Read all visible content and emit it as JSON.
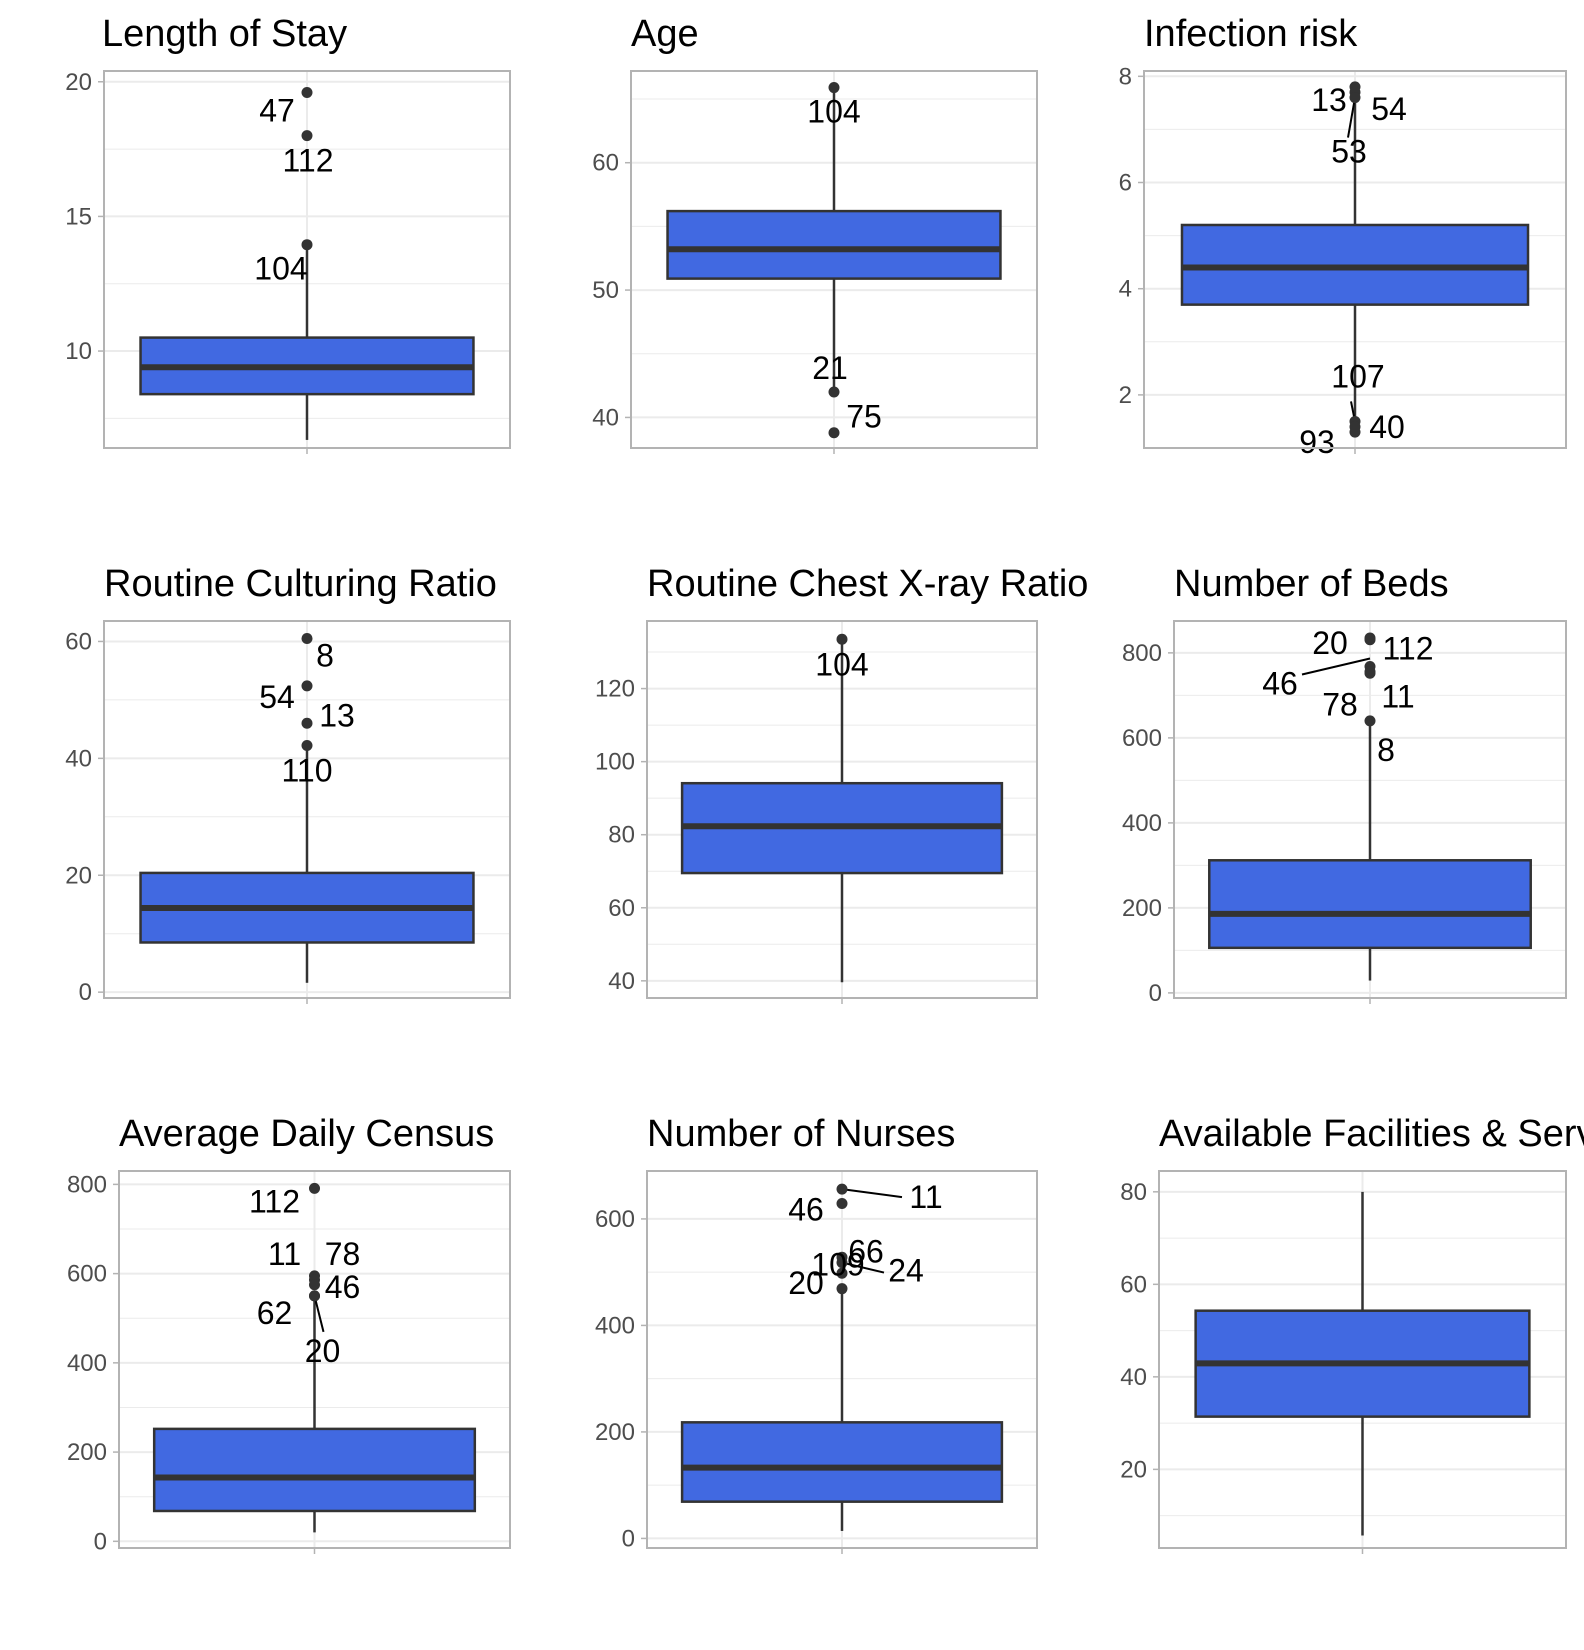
{
  "colors": {
    "box_fill": "#4169E1",
    "box_line": "#333333",
    "grid": "#ebebeb",
    "panel_border": "#b3b3b3",
    "tick_text": "#4d4d4d"
  },
  "chart_data": [
    {
      "type": "boxplot",
      "title": "Length of Stay",
      "ylim": [
        6.4,
        20.4
      ],
      "yticks": [
        10,
        15,
        20
      ],
      "ytick_labels": [
        "10",
        "15",
        "20"
      ],
      "box": {
        "q1": 8.4,
        "median": 9.4,
        "q3": 10.5,
        "whisker_low": 6.7,
        "whisker_high": 14.0
      },
      "outliers": [
        {
          "y": 19.6,
          "label": "47"
        },
        {
          "y": 18.0,
          "label": "112"
        },
        {
          "y": 13.95,
          "label": "104"
        }
      ]
    },
    {
      "type": "boxplot",
      "title": "Age",
      "ylim": [
        37.6,
        67.2
      ],
      "yticks": [
        40,
        50,
        60
      ],
      "ytick_labels": [
        "40",
        "50",
        "60"
      ],
      "box": {
        "q1": 50.9,
        "median": 53.2,
        "q3": 56.2,
        "whisker_low": 42.0,
        "whisker_high": 65.9
      },
      "outliers": [
        {
          "y": 65.9,
          "label": "104"
        },
        {
          "y": 42.0,
          "label": "21"
        },
        {
          "y": 38.8,
          "label": "75"
        }
      ]
    },
    {
      "type": "boxplot",
      "title": "Infection risk",
      "ylim": [
        1.0,
        8.1
      ],
      "yticks": [
        2,
        4,
        6,
        8
      ],
      "ytick_labels": [
        "2",
        "4",
        "6",
        "8"
      ],
      "box": {
        "q1": 3.7,
        "median": 4.4,
        "q3": 5.2,
        "whisker_low": 1.4,
        "whisker_high": 7.8
      },
      "outliers": [
        {
          "y": 7.8,
          "label": "13"
        },
        {
          "y": 7.7,
          "label": "54"
        },
        {
          "y": 7.6,
          "label": "53"
        },
        {
          "y": 1.5,
          "label": "107"
        },
        {
          "y": 1.3,
          "label": "93"
        },
        {
          "y": 1.4,
          "label": "40"
        }
      ]
    },
    {
      "type": "boxplot",
      "title": "Routine Culturing Ratio",
      "ylim": [
        -1.0,
        63.5
      ],
      "yticks": [
        0,
        20,
        40,
        60
      ],
      "ytick_labels": [
        "0",
        "20",
        "40",
        "60"
      ],
      "box": {
        "q1": 8.5,
        "median": 14.4,
        "q3": 20.4,
        "whisker_low": 1.6,
        "whisker_high": 42.2
      },
      "outliers": [
        {
          "y": 60.5,
          "label": "8"
        },
        {
          "y": 52.4,
          "label": "54"
        },
        {
          "y": 46.0,
          "label": "13"
        },
        {
          "y": 42.2,
          "label": "110"
        }
      ]
    },
    {
      "type": "boxplot",
      "title": "Routine Chest X-ray Ratio",
      "ylim": [
        35.3,
        138.5
      ],
      "yticks": [
        40,
        60,
        80,
        100,
        120
      ],
      "ytick_labels": [
        "40",
        "60",
        "80",
        "100",
        "120"
      ],
      "box": {
        "q1": 69.5,
        "median": 82.3,
        "q3": 94.1,
        "whisker_low": 39.6,
        "whisker_high": 133.5
      },
      "outliers": [
        {
          "y": 133.5,
          "label": "104"
        }
      ]
    },
    {
      "type": "boxplot",
      "title": "Number of Beds",
      "ylim": [
        -12,
        875
      ],
      "yticks": [
        0,
        200,
        400,
        600,
        800
      ],
      "ytick_labels": [
        "0",
        "200",
        "400",
        "600",
        "800"
      ],
      "box": {
        "q1": 106,
        "median": 186,
        "q3": 312,
        "whisker_low": 29,
        "whisker_high": 640
      },
      "outliers": [
        {
          "y": 835,
          "label": "20"
        },
        {
          "y": 831,
          "label": "112"
        },
        {
          "y": 768,
          "label": "46"
        },
        {
          "y": 756,
          "label": "78"
        },
        {
          "y": 752,
          "label": "11"
        },
        {
          "y": 640,
          "label": "8"
        }
      ]
    },
    {
      "type": "boxplot",
      "title": "Average Daily Census",
      "ylim": [
        -15,
        830
      ],
      "yticks": [
        0,
        200,
        400,
        600,
        800
      ],
      "ytick_labels": [
        "0",
        "200",
        "400",
        "600",
        "800"
      ],
      "box": {
        "q1": 68,
        "median": 143,
        "q3": 252,
        "whisker_low": 20,
        "whisker_high": 550
      },
      "outliers": [
        {
          "y": 791,
          "label": "112"
        },
        {
          "y": 595,
          "label": "11"
        },
        {
          "y": 586,
          "label": "78"
        },
        {
          "y": 575,
          "label": "62"
        },
        {
          "y": 550,
          "label": "46"
        },
        {
          "y": 550,
          "label": "20"
        }
      ]
    },
    {
      "type": "boxplot",
      "title": "Number of Nurses",
      "ylim": [
        -18,
        690
      ],
      "yticks": [
        0,
        200,
        400,
        600
      ],
      "ytick_labels": [
        "0",
        "200",
        "400",
        "600"
      ],
      "box": {
        "q1": 69,
        "median": 133,
        "q3": 218,
        "whisker_low": 14,
        "whisker_high": 469
      },
      "outliers": [
        {
          "y": 656,
          "label": "11"
        },
        {
          "y": 629,
          "label": "46"
        },
        {
          "y": 528,
          "label": "66"
        },
        {
          "y": 518,
          "label": "24"
        },
        {
          "y": 498,
          "label": "20"
        },
        {
          "y": 469,
          "label": "109"
        }
      ]
    },
    {
      "type": "boxplot",
      "title": "Available Facilities & Services",
      "ylim": [
        3.0,
        84.5
      ],
      "yticks": [
        20,
        40,
        60,
        80
      ],
      "ytick_labels": [
        "20",
        "40",
        "60",
        "80"
      ],
      "box": {
        "q1": 31.4,
        "median": 42.9,
        "q3": 54.3,
        "whisker_low": 5.7,
        "whisker_high": 80.0
      },
      "outliers": []
    }
  ]
}
